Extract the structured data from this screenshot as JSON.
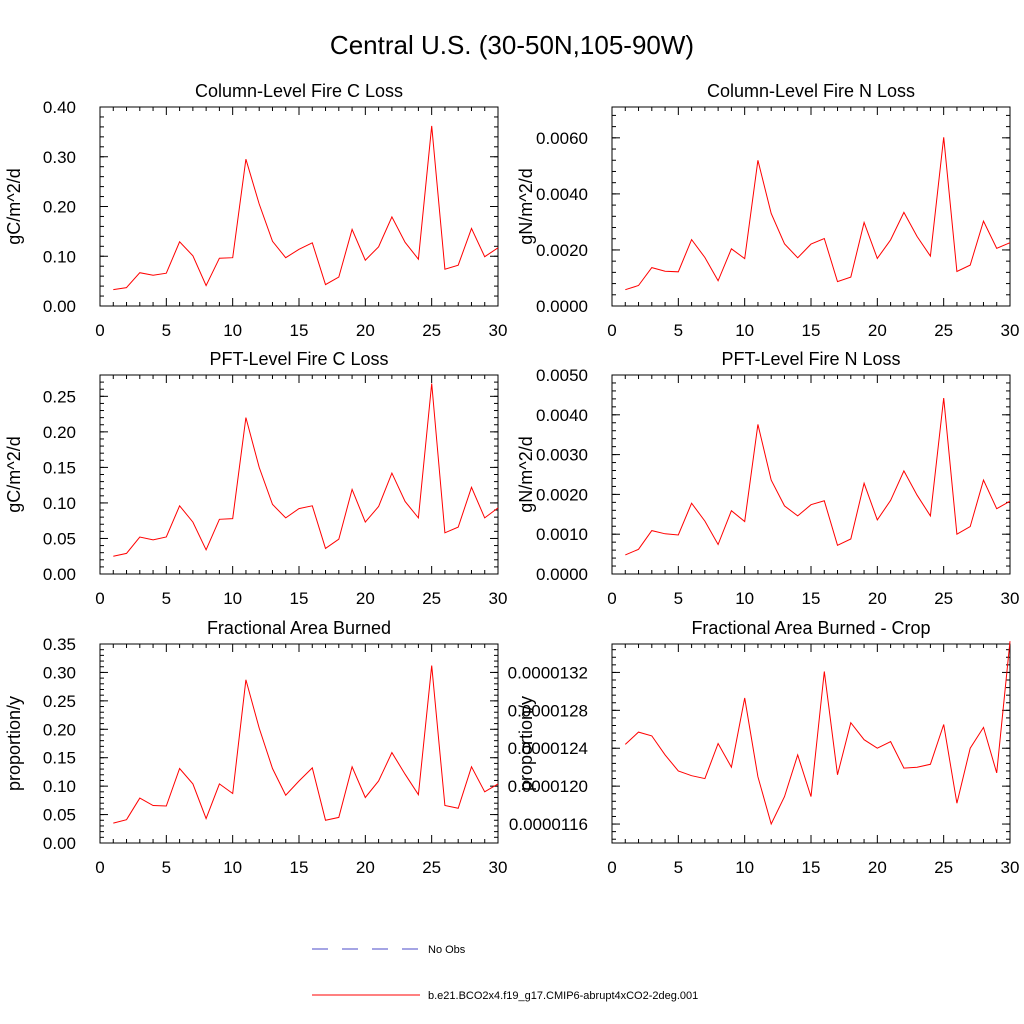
{
  "title": "Central U.S. (30-50N,105-90W)",
  "colors": {
    "model": "#ff0000",
    "obs": "#4b4bc8",
    "axis": "#000000"
  },
  "legend": {
    "obs_label": "No Obs",
    "model_label": "b.e21.BCO2x4.f19_g17.CMIP6-abrupt4xCO2-2deg.001"
  },
  "chart_data": [
    {
      "type": "line",
      "title": "Column-Level Fire C Loss",
      "ylabel": "gC/m^2/d",
      "xlim": [
        0,
        30
      ],
      "ylim": [
        0,
        0.4
      ],
      "xticks": [
        0,
        5,
        10,
        15,
        20,
        25,
        30
      ],
      "xtick_labels": [
        "0",
        "5",
        "10",
        "15",
        "20",
        "25",
        "30"
      ],
      "yticks": [
        0,
        0.1,
        0.2,
        0.3,
        0.4
      ],
      "ytick_labels": [
        "0.00",
        "0.10",
        "0.20",
        "0.30",
        "0.40"
      ],
      "x": [
        1,
        2,
        3,
        4,
        5,
        6,
        7,
        8,
        9,
        10,
        11,
        12,
        13,
        14,
        15,
        16,
        17,
        18,
        19,
        20,
        21,
        22,
        23,
        24,
        25,
        26,
        27,
        28,
        29,
        30
      ],
      "series": [
        {
          "name": "b.e21.BCO2x4.f19_g17.CMIP6-abrupt4xCO2-2deg.001",
          "values": [
            0.033,
            0.037,
            0.067,
            0.062,
            0.066,
            0.129,
            0.101,
            0.041,
            0.096,
            0.097,
            0.295,
            0.205,
            0.13,
            0.097,
            0.114,
            0.127,
            0.043,
            0.058,
            0.154,
            0.092,
            0.119,
            0.179,
            0.128,
            0.094,
            0.362,
            0.074,
            0.082,
            0.156,
            0.099,
            0.117
          ]
        }
      ]
    },
    {
      "type": "line",
      "title": "Column-Level Fire N Loss",
      "ylabel": "gN/m^2/d",
      "xlim": [
        0,
        30
      ],
      "ylim": [
        0,
        0.0071
      ],
      "xticks": [
        0,
        5,
        10,
        15,
        20,
        25,
        30
      ],
      "xtick_labels": [
        "0",
        "5",
        "10",
        "15",
        "20",
        "25",
        "30"
      ],
      "yticks": [
        0,
        0.002,
        0.004,
        0.006
      ],
      "ytick_labels": [
        "0.0000",
        "0.0020",
        "0.0040",
        "0.0060"
      ],
      "x": [
        1,
        2,
        3,
        4,
        5,
        6,
        7,
        8,
        9,
        10,
        11,
        12,
        13,
        14,
        15,
        16,
        17,
        18,
        19,
        20,
        21,
        22,
        23,
        24,
        25,
        26,
        27,
        28,
        29,
        30
      ],
      "series": [
        {
          "name": "b.e21.BCO2x4.f19_g17.CMIP6-abrupt4xCO2-2deg.001",
          "values": [
            0.00058,
            0.00073,
            0.00137,
            0.00124,
            0.00122,
            0.00237,
            0.00173,
            0.0009,
            0.00204,
            0.00169,
            0.0052,
            0.0033,
            0.00222,
            0.00172,
            0.00221,
            0.00241,
            0.00087,
            0.00103,
            0.00298,
            0.0017,
            0.00236,
            0.00334,
            0.00248,
            0.00178,
            0.00602,
            0.00123,
            0.00146,
            0.00303,
            0.00206,
            0.00226
          ]
        }
      ]
    },
    {
      "type": "line",
      "title": "PFT-Level Fire C Loss",
      "ylabel": "gC/m^2/d",
      "xlim": [
        0,
        30
      ],
      "ylim": [
        0,
        0.28
      ],
      "xticks": [
        0,
        5,
        10,
        15,
        20,
        25,
        30
      ],
      "xtick_labels": [
        "0",
        "5",
        "10",
        "15",
        "20",
        "25",
        "30"
      ],
      "yticks": [
        0,
        0.05,
        0.1,
        0.15,
        0.2,
        0.25
      ],
      "ytick_labels": [
        "0.00",
        "0.05",
        "0.10",
        "0.15",
        "0.20",
        "0.25"
      ],
      "x": [
        1,
        2,
        3,
        4,
        5,
        6,
        7,
        8,
        9,
        10,
        11,
        12,
        13,
        14,
        15,
        16,
        17,
        18,
        19,
        20,
        21,
        22,
        23,
        24,
        25,
        26,
        27,
        28,
        29,
        30
      ],
      "series": [
        {
          "name": "b.e21.BCO2x4.f19_g17.CMIP6-abrupt4xCO2-2deg.001",
          "values": [
            0.025,
            0.029,
            0.052,
            0.048,
            0.052,
            0.096,
            0.073,
            0.034,
            0.077,
            0.078,
            0.22,
            0.15,
            0.098,
            0.079,
            0.092,
            0.096,
            0.036,
            0.049,
            0.119,
            0.073,
            0.095,
            0.142,
            0.102,
            0.079,
            0.268,
            0.058,
            0.066,
            0.122,
            0.079,
            0.093
          ]
        }
      ]
    },
    {
      "type": "line",
      "title": "PFT-Level Fire N Loss",
      "ylabel": "gN/m^2/d",
      "xlim": [
        0,
        30
      ],
      "ylim": [
        0,
        0.005
      ],
      "xticks": [
        0,
        5,
        10,
        15,
        20,
        25,
        30
      ],
      "xtick_labels": [
        "0",
        "5",
        "10",
        "15",
        "20",
        "25",
        "30"
      ],
      "yticks": [
        0,
        0.001,
        0.002,
        0.003,
        0.004,
        0.005
      ],
      "ytick_labels": [
        "0.0000",
        "0.0010",
        "0.0020",
        "0.0030",
        "0.0040",
        "0.0050"
      ],
      "x": [
        1,
        2,
        3,
        4,
        5,
        6,
        7,
        8,
        9,
        10,
        11,
        12,
        13,
        14,
        15,
        16,
        17,
        18,
        19,
        20,
        21,
        22,
        23,
        24,
        25,
        26,
        27,
        28,
        29,
        30
      ],
      "series": [
        {
          "name": "b.e21.BCO2x4.f19_g17.CMIP6-abrupt4xCO2-2deg.001",
          "values": [
            0.00048,
            0.00062,
            0.00109,
            0.00101,
            0.00098,
            0.00178,
            0.00133,
            0.00074,
            0.00159,
            0.00132,
            0.00376,
            0.00236,
            0.00171,
            0.00146,
            0.00174,
            0.00184,
            0.00072,
            0.00088,
            0.00228,
            0.00136,
            0.00185,
            0.00259,
            0.00198,
            0.00146,
            0.00442,
            0.001,
            0.00119,
            0.00236,
            0.00164,
            0.00183
          ]
        }
      ]
    },
    {
      "type": "line",
      "title": "Fractional Area Burned",
      "ylabel": "proportion/y",
      "xlim": [
        0,
        30
      ],
      "ylim": [
        0,
        0.35
      ],
      "xticks": [
        0,
        5,
        10,
        15,
        20,
        25,
        30
      ],
      "xtick_labels": [
        "0",
        "5",
        "10",
        "15",
        "20",
        "25",
        "30"
      ],
      "yticks": [
        0,
        0.05,
        0.1,
        0.15,
        0.2,
        0.25,
        0.3,
        0.35
      ],
      "ytick_labels": [
        "0.00",
        "0.05",
        "0.10",
        "0.15",
        "0.20",
        "0.25",
        "0.30",
        "0.35"
      ],
      "x": [
        1,
        2,
        3,
        4,
        5,
        6,
        7,
        8,
        9,
        10,
        11,
        12,
        13,
        14,
        15,
        16,
        17,
        18,
        19,
        20,
        21,
        22,
        23,
        24,
        25,
        26,
        27,
        28,
        29,
        30
      ],
      "series": [
        {
          "name": "b.e21.BCO2x4.f19_g17.CMIP6-abrupt4xCO2-2deg.001",
          "values": [
            0.035,
            0.041,
            0.079,
            0.066,
            0.065,
            0.131,
            0.104,
            0.043,
            0.104,
            0.087,
            0.287,
            0.202,
            0.131,
            0.084,
            0.109,
            0.132,
            0.04,
            0.045,
            0.134,
            0.08,
            0.109,
            0.159,
            0.121,
            0.085,
            0.312,
            0.066,
            0.061,
            0.134,
            0.09,
            0.104
          ]
        }
      ]
    },
    {
      "type": "line",
      "title": "Fractional Area Burned - Crop",
      "ylabel": "proportion/y",
      "xlim": [
        0,
        30
      ],
      "ylim": [
        1.14e-05,
        1.35e-05
      ],
      "xticks": [
        0,
        5,
        10,
        15,
        20,
        25,
        30
      ],
      "xtick_labels": [
        "0",
        "5",
        "10",
        "15",
        "20",
        "25",
        "30"
      ],
      "yticks": [
        1.16e-05,
        1.2e-05,
        1.24e-05,
        1.28e-05,
        1.32e-05
      ],
      "ytick_labels": [
        "0.0000116",
        "0.0000120",
        "0.0000124",
        "0.0000128",
        "0.0000132"
      ],
      "x": [
        1,
        2,
        3,
        4,
        5,
        6,
        7,
        8,
        9,
        10,
        11,
        12,
        13,
        14,
        15,
        16,
        17,
        18,
        19,
        20,
        21,
        22,
        23,
        24,
        25,
        26,
        27,
        28,
        29,
        30
      ],
      "series": [
        {
          "name": "b.e21.BCO2x4.f19_g17.CMIP6-abrupt4xCO2-2deg.001",
          "values": [
            1.244e-05,
            1.257e-05,
            1.253e-05,
            1.233e-05,
            1.216e-05,
            1.211e-05,
            1.208e-05,
            1.245e-05,
            1.22e-05,
            1.293e-05,
            1.21e-05,
            1.16e-05,
            1.189e-05,
            1.233e-05,
            1.189e-05,
            1.321e-05,
            1.212e-05,
            1.267e-05,
            1.249e-05,
            1.24e-05,
            1.247e-05,
            1.219e-05,
            1.22e-05,
            1.223e-05,
            1.265e-05,
            1.182e-05,
            1.24e-05,
            1.262e-05,
            1.214e-05,
            1.353e-05
          ]
        }
      ]
    }
  ]
}
